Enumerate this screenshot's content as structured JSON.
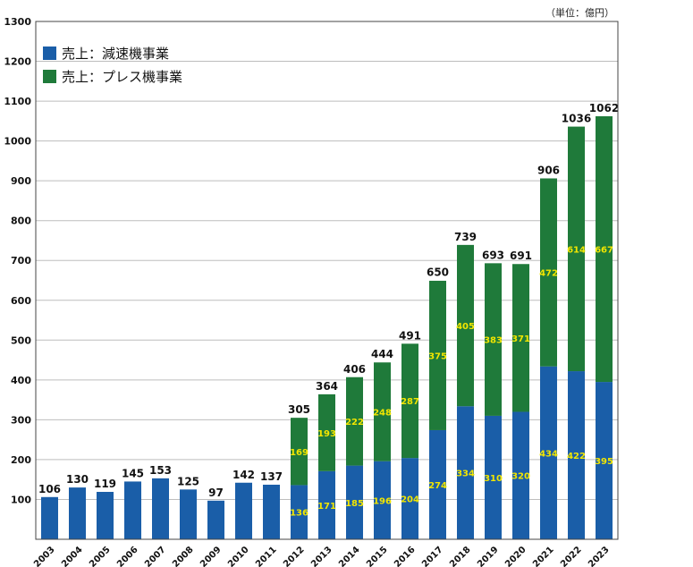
{
  "unit_label": "（単位：億円）",
  "chart_data": {
    "type": "bar",
    "stacked": true,
    "categories": [
      "2003",
      "2004",
      "2005",
      "2006",
      "2007",
      "2008",
      "2009",
      "2010",
      "2011",
      "2012",
      "2013",
      "2014",
      "2015",
      "2016",
      "2017",
      "2018",
      "2019",
      "2020",
      "2021",
      "2022",
      "2023"
    ],
    "series": [
      {
        "name": "売上：減速機事業",
        "color": "#1a5ea8",
        "values": [
          106,
          130,
          119,
          145,
          153,
          125,
          97,
          142,
          137,
          136,
          171,
          185,
          196,
          204,
          274,
          334,
          310,
          320,
          434,
          422,
          395
        ]
      },
      {
        "name": "売上：プレス機事業",
        "color": "#1f7a3a",
        "values": [
          null,
          null,
          null,
          null,
          null,
          null,
          null,
          null,
          null,
          169,
          193,
          222,
          248,
          287,
          375,
          405,
          383,
          371,
          472,
          614,
          667
        ]
      }
    ],
    "totals": [
      106,
      130,
      119,
      145,
      153,
      125,
      97,
      142,
      137,
      305,
      364,
      406,
      444,
      491,
      650,
      739,
      693,
      691,
      906,
      1036,
      1062
    ],
    "segment_labels": {
      "減速機事業": [
        null,
        null,
        null,
        null,
        null,
        null,
        null,
        null,
        null,
        "136",
        "171",
        "185",
        "196",
        "204",
        "274",
        "334",
        "310",
        "320",
        "434",
        "422",
        "395"
      ],
      "プレス機事業": [
        null,
        null,
        null,
        null,
        null,
        null,
        null,
        null,
        null,
        "169",
        "193",
        "222",
        "248",
        "287",
        "375",
        "405",
        "383",
        "371",
        "472",
        "614",
        "667"
      ]
    },
    "yticks": [
      100,
      200,
      300,
      400,
      500,
      600,
      700,
      800,
      900,
      1000,
      1100,
      1200,
      1300
    ],
    "ylim": [
      0,
      1300
    ],
    "grid": true,
    "legend_position": "top-left",
    "label_color": "#f2e600"
  }
}
